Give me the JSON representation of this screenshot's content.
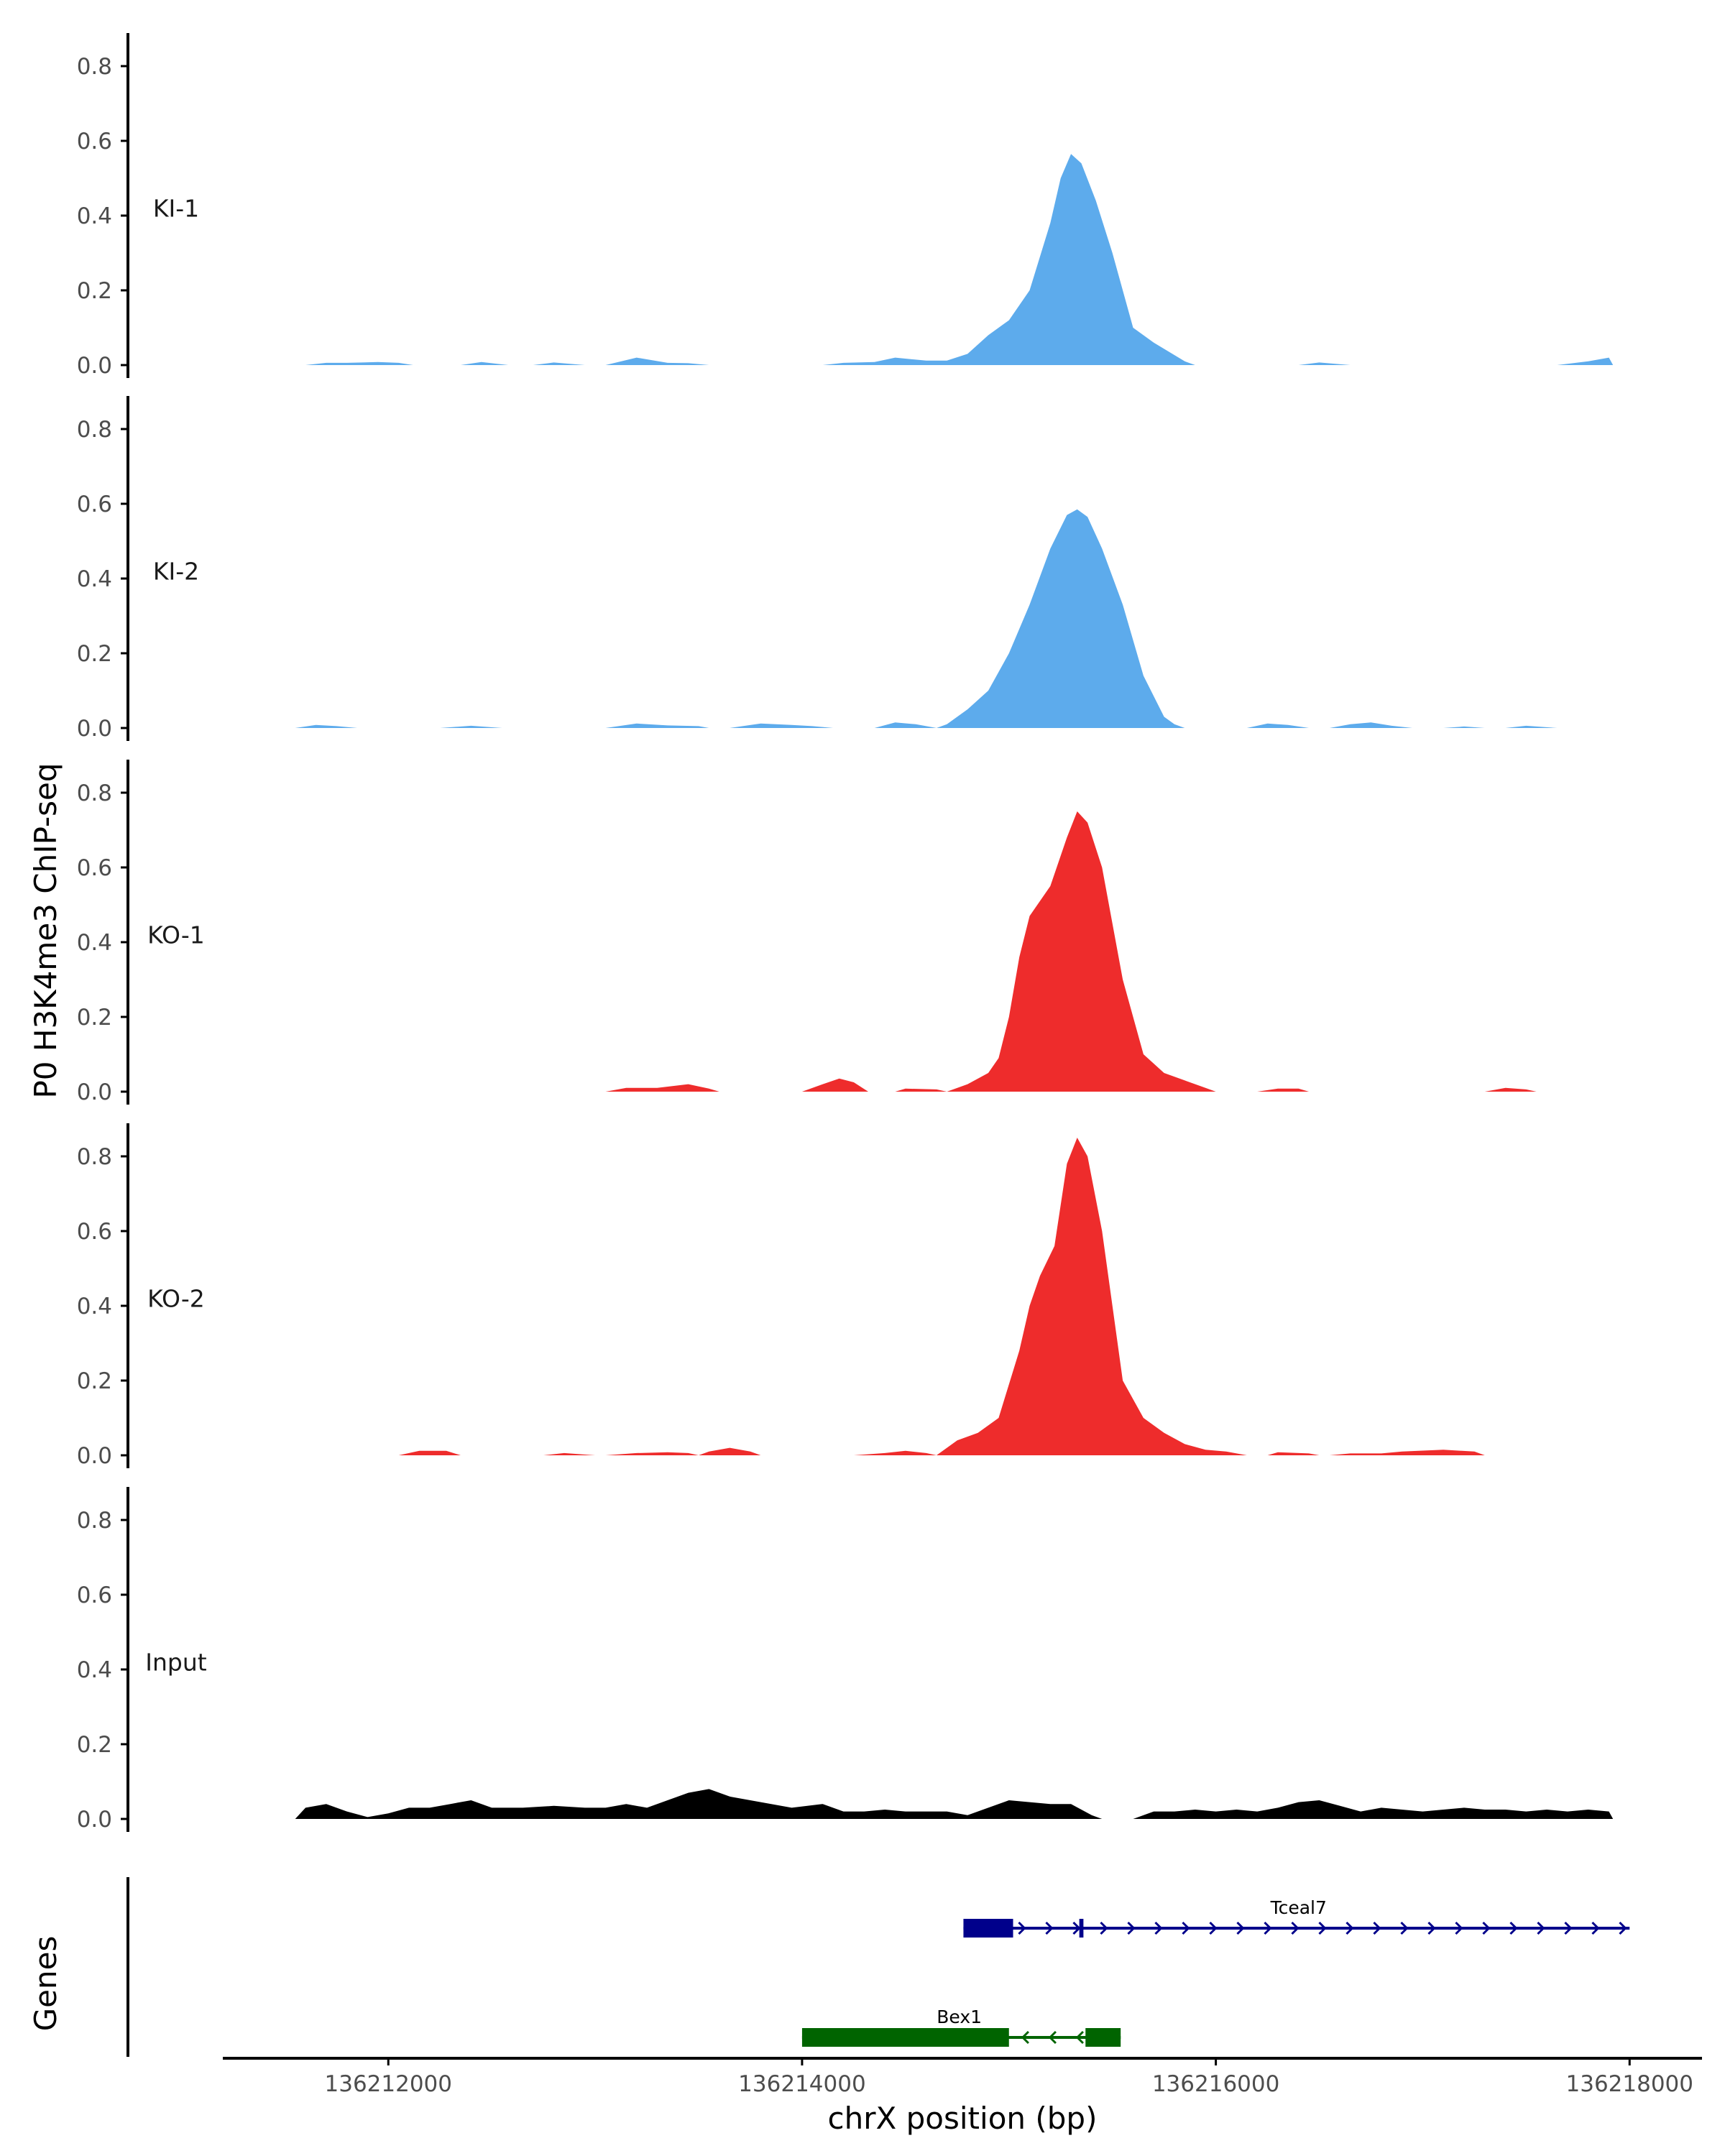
{
  "chart_data": {
    "type": "area",
    "title": "",
    "ylabel": "P0 H3K4me3 ChIP-seq",
    "xlabel": "chrX position (bp)",
    "xlim": [
      136211200,
      136218350
    ],
    "ylim": [
      0,
      0.88
    ],
    "y_ticks": [
      0.0,
      0.2,
      0.4,
      0.6,
      0.8
    ],
    "y_tick_labels": [
      "0.0",
      "0.2",
      "0.4",
      "0.6",
      "0.8"
    ],
    "x_ticks": [
      136212000,
      136214000,
      136216000,
      136218000
    ],
    "x_tick_labels": [
      "136212000",
      "136214000",
      "136216000",
      "136218000"
    ],
    "colors": {
      "KI": "#5dabec",
      "KO": "#ee2c2c",
      "Input": "#000000",
      "Tceal7": "#00008b",
      "Bex1": "#006400"
    },
    "tracks": [
      {
        "name": "KI-1",
        "color": "#5dabec",
        "points": [
          [
            136211600,
            0
          ],
          [
            136211700,
            0.006
          ],
          [
            136211800,
            0.006
          ],
          [
            136211950,
            0.008
          ],
          [
            136212050,
            0.006
          ],
          [
            136212120,
            0
          ],
          [
            136212350,
            0
          ],
          [
            136212450,
            0.008
          ],
          [
            136212580,
            0
          ],
          [
            136212700,
            0
          ],
          [
            136212800,
            0.007
          ],
          [
            136212950,
            0
          ],
          [
            136213050,
            0
          ],
          [
            136213200,
            0.02
          ],
          [
            136213350,
            0.006
          ],
          [
            136213450,
            0.005
          ],
          [
            136213550,
            0
          ],
          [
            136214100,
            0
          ],
          [
            136214200,
            0.006
          ],
          [
            136214350,
            0.008
          ],
          [
            136214450,
            0.02
          ],
          [
            136214600,
            0.012
          ],
          [
            136214700,
            0.012
          ],
          [
            136214800,
            0.03
          ],
          [
            136214900,
            0.08
          ],
          [
            136215000,
            0.12
          ],
          [
            136215100,
            0.2
          ],
          [
            136215200,
            0.38
          ],
          [
            136215250,
            0.5
          ],
          [
            136215300,
            0.565
          ],
          [
            136215350,
            0.54
          ],
          [
            136215420,
            0.44
          ],
          [
            136215500,
            0.3
          ],
          [
            136215600,
            0.1
          ],
          [
            136215700,
            0.06
          ],
          [
            136215850,
            0.01
          ],
          [
            136215900,
            0
          ],
          [
            136216400,
            0
          ],
          [
            136216500,
            0.007
          ],
          [
            136216650,
            0
          ],
          [
            136217650,
            0
          ],
          [
            136217800,
            0.01
          ],
          [
            136217900,
            0.02
          ],
          [
            136217920,
            0
          ]
        ]
      },
      {
        "name": "KI-2",
        "color": "#5dabec",
        "points": [
          [
            136211550,
            0
          ],
          [
            136211650,
            0.008
          ],
          [
            136211750,
            0.005
          ],
          [
            136211850,
            0
          ],
          [
            136212250,
            0
          ],
          [
            136212400,
            0.006
          ],
          [
            136212550,
            0
          ],
          [
            136213050,
            0
          ],
          [
            136213200,
            0.012
          ],
          [
            136213350,
            0.007
          ],
          [
            136213500,
            0.005
          ],
          [
            136213550,
            0
          ],
          [
            136213650,
            0
          ],
          [
            136213800,
            0.012
          ],
          [
            136213950,
            0.008
          ],
          [
            136214050,
            0.005
          ],
          [
            136214150,
            0
          ],
          [
            136214350,
            0
          ],
          [
            136214450,
            0.015
          ],
          [
            136214550,
            0.01
          ],
          [
            136214650,
            0
          ],
          [
            136214700,
            0.01
          ],
          [
            136214800,
            0.05
          ],
          [
            136214900,
            0.1
          ],
          [
            136215000,
            0.2
          ],
          [
            136215100,
            0.33
          ],
          [
            136215200,
            0.48
          ],
          [
            136215280,
            0.57
          ],
          [
            136215330,
            0.585
          ],
          [
            136215380,
            0.565
          ],
          [
            136215450,
            0.48
          ],
          [
            136215550,
            0.33
          ],
          [
            136215650,
            0.14
          ],
          [
            136215750,
            0.03
          ],
          [
            136215800,
            0.01
          ],
          [
            136215850,
            0
          ],
          [
            136216150,
            0
          ],
          [
            136216250,
            0.012
          ],
          [
            136216350,
            0.008
          ],
          [
            136216450,
            0
          ],
          [
            136216550,
            0
          ],
          [
            136216650,
            0.01
          ],
          [
            136216750,
            0.015
          ],
          [
            136216850,
            0.006
          ],
          [
            136216950,
            0
          ],
          [
            136217100,
            0
          ],
          [
            136217200,
            0.004
          ],
          [
            136217300,
            0
          ],
          [
            136217400,
            0
          ],
          [
            136217500,
            0.006
          ],
          [
            136217650,
            0
          ]
        ]
      },
      {
        "name": "KO-1",
        "color": "#ee2c2c",
        "points": [
          [
            136213050,
            0
          ],
          [
            136213150,
            0.01
          ],
          [
            136213300,
            0.01
          ],
          [
            136213450,
            0.02
          ],
          [
            136213550,
            0.008
          ],
          [
            136213600,
            0
          ],
          [
            136214000,
            0
          ],
          [
            136214100,
            0.02
          ],
          [
            136214180,
            0.035
          ],
          [
            136214250,
            0.025
          ],
          [
            136214320,
            0
          ],
          [
            136214450,
            0
          ],
          [
            136214500,
            0.008
          ],
          [
            136214650,
            0.006
          ],
          [
            136214700,
            0
          ],
          [
            136214800,
            0.02
          ],
          [
            136214900,
            0.05
          ],
          [
            136214950,
            0.09
          ],
          [
            136215000,
            0.2
          ],
          [
            136215050,
            0.36
          ],
          [
            136215100,
            0.47
          ],
          [
            136215200,
            0.55
          ],
          [
            136215280,
            0.68
          ],
          [
            136215330,
            0.75
          ],
          [
            136215380,
            0.72
          ],
          [
            136215450,
            0.6
          ],
          [
            136215550,
            0.3
          ],
          [
            136215650,
            0.1
          ],
          [
            136215750,
            0.05
          ],
          [
            136215850,
            0.03
          ],
          [
            136215950,
            0.01
          ],
          [
            136216000,
            0
          ],
          [
            136216200,
            0
          ],
          [
            136216300,
            0.008
          ],
          [
            136216400,
            0.008
          ],
          [
            136216450,
            0
          ],
          [
            136217300,
            0
          ],
          [
            136217400,
            0.01
          ],
          [
            136217500,
            0.006
          ],
          [
            136217550,
            0
          ]
        ]
      },
      {
        "name": "KO-2",
        "color": "#ee2c2c",
        "points": [
          [
            136212050,
            0
          ],
          [
            136212150,
            0.012
          ],
          [
            136212280,
            0.012
          ],
          [
            136212350,
            0
          ],
          [
            136212750,
            0
          ],
          [
            136212850,
            0.006
          ],
          [
            136213000,
            0
          ],
          [
            136213050,
            0
          ],
          [
            136213200,
            0.006
          ],
          [
            136213350,
            0.008
          ],
          [
            136213450,
            0.006
          ],
          [
            136213500,
            0
          ],
          [
            136213550,
            0.01
          ],
          [
            136213650,
            0.02
          ],
          [
            136213750,
            0.01
          ],
          [
            136213800,
            0
          ],
          [
            136214250,
            0
          ],
          [
            136214400,
            0.006
          ],
          [
            136214500,
            0.012
          ],
          [
            136214600,
            0.006
          ],
          [
            136214650,
            0
          ],
          [
            136214750,
            0.04
          ],
          [
            136214850,
            0.06
          ],
          [
            136214950,
            0.1
          ],
          [
            136215050,
            0.28
          ],
          [
            136215100,
            0.4
          ],
          [
            136215150,
            0.48
          ],
          [
            136215220,
            0.56
          ],
          [
            136215280,
            0.78
          ],
          [
            136215330,
            0.85
          ],
          [
            136215380,
            0.8
          ],
          [
            136215450,
            0.6
          ],
          [
            136215550,
            0.2
          ],
          [
            136215650,
            0.1
          ],
          [
            136215750,
            0.06
          ],
          [
            136215850,
            0.03
          ],
          [
            136215950,
            0.015
          ],
          [
            136216050,
            0.01
          ],
          [
            136216150,
            0
          ],
          [
            136216250,
            0
          ],
          [
            136216300,
            0.008
          ],
          [
            136216450,
            0.005
          ],
          [
            136216500,
            0
          ],
          [
            136216550,
            0
          ],
          [
            136216650,
            0.005
          ],
          [
            136216800,
            0.005
          ],
          [
            136216900,
            0.01
          ],
          [
            136217100,
            0.015
          ],
          [
            136217250,
            0.01
          ],
          [
            136217300,
            0
          ]
        ]
      },
      {
        "name": "Input",
        "color": "#000000",
        "points": [
          [
            136211550,
            0
          ],
          [
            136211600,
            0.03
          ],
          [
            136211700,
            0.04
          ],
          [
            136211800,
            0.02
          ],
          [
            136211900,
            0.005
          ],
          [
            136212000,
            0.015
          ],
          [
            136212100,
            0.03
          ],
          [
            136212200,
            0.03
          ],
          [
            136212300,
            0.04
          ],
          [
            136212400,
            0.05
          ],
          [
            136212500,
            0.03
          ],
          [
            136212650,
            0.03
          ],
          [
            136212800,
            0.035
          ],
          [
            136212950,
            0.03
          ],
          [
            136213050,
            0.03
          ],
          [
            136213150,
            0.04
          ],
          [
            136213250,
            0.03
          ],
          [
            136213350,
            0.05
          ],
          [
            136213450,
            0.07
          ],
          [
            136213550,
            0.08
          ],
          [
            136213650,
            0.06
          ],
          [
            136213800,
            0.045
          ],
          [
            136213950,
            0.03
          ],
          [
            136214100,
            0.04
          ],
          [
            136214200,
            0.02
          ],
          [
            136214300,
            0.02
          ],
          [
            136214400,
            0.025
          ],
          [
            136214500,
            0.02
          ],
          [
            136214600,
            0.02
          ],
          [
            136214700,
            0.02
          ],
          [
            136214800,
            0.01
          ],
          [
            136214900,
            0.03
          ],
          [
            136215000,
            0.05
          ],
          [
            136215100,
            0.045
          ],
          [
            136215200,
            0.04
          ],
          [
            136215300,
            0.04
          ],
          [
            136215400,
            0.01
          ],
          [
            136215450,
            0
          ],
          [
            136215600,
            0
          ],
          [
            136215700,
            0.02
          ],
          [
            136215800,
            0.02
          ],
          [
            136215900,
            0.025
          ],
          [
            136216000,
            0.02
          ],
          [
            136216100,
            0.025
          ],
          [
            136216200,
            0.02
          ],
          [
            136216300,
            0.03
          ],
          [
            136216400,
            0.045
          ],
          [
            136216500,
            0.05
          ],
          [
            136216600,
            0.035
          ],
          [
            136216700,
            0.02
          ],
          [
            136216800,
            0.03
          ],
          [
            136216900,
            0.025
          ],
          [
            136217000,
            0.02
          ],
          [
            136217100,
            0.025
          ],
          [
            136217200,
            0.03
          ],
          [
            136217300,
            0.025
          ],
          [
            136217400,
            0.025
          ],
          [
            136217500,
            0.02
          ],
          [
            136217600,
            0.025
          ],
          [
            136217700,
            0.02
          ],
          [
            136217800,
            0.025
          ],
          [
            136217900,
            0.02
          ],
          [
            136217920,
            0
          ]
        ]
      }
    ],
    "genes_panel": {
      "label": "Genes",
      "genes": [
        {
          "name": "Tceal7",
          "strand": "+",
          "color": "#00008b",
          "start": 136214780,
          "end": 136218000,
          "exons": [
            [
              136214780,
              136215020
            ],
            [
              136215340,
              136215360
            ]
          ],
          "label_pos": 136216400
        },
        {
          "name": "Bex1",
          "strand": "-",
          "color": "#006400",
          "start": 136214000,
          "end": 136215540,
          "exons": [
            [
              136214000,
              136215000
            ],
            [
              136215370,
              136215540
            ]
          ],
          "label_pos": 136214760
        }
      ]
    }
  }
}
